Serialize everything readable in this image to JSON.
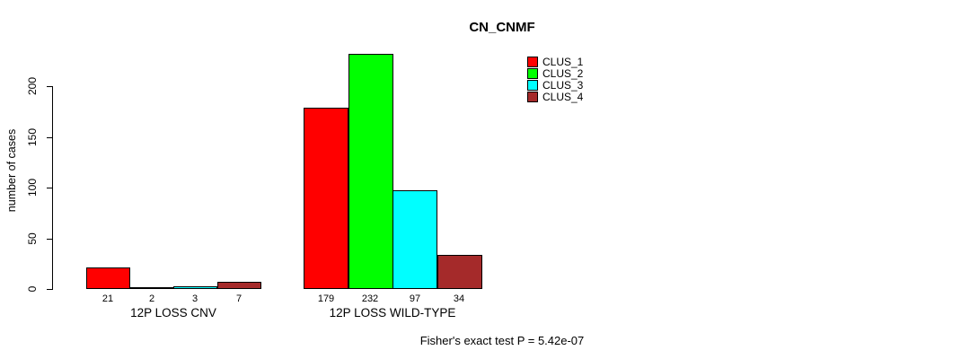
{
  "chart_data": {
    "type": "bar",
    "title": "CN_CNMF",
    "ylabel": "number of cases",
    "caption": "Fisher's exact test P = 5.42e-07",
    "categories": [
      "12P LOSS CNV",
      "12P LOSS WILD-TYPE"
    ],
    "series": [
      {
        "name": "CLUS_1",
        "color": "#FF0000",
        "values": [
          21,
          179
        ]
      },
      {
        "name": "CLUS_2",
        "color": "#00FF00",
        "values": [
          2,
          232
        ]
      },
      {
        "name": "CLUS_3",
        "color": "#00FFFF",
        "values": [
          3,
          97
        ]
      },
      {
        "name": "CLUS_4",
        "color": "#A52A2A",
        "values": [
          7,
          34
        ]
      }
    ],
    "yticks": [
      0,
      50,
      100,
      150,
      200
    ],
    "ylim": [
      0,
      240
    ],
    "grid": false,
    "legend_position": "top-right",
    "show_values_under_bars": true
  }
}
